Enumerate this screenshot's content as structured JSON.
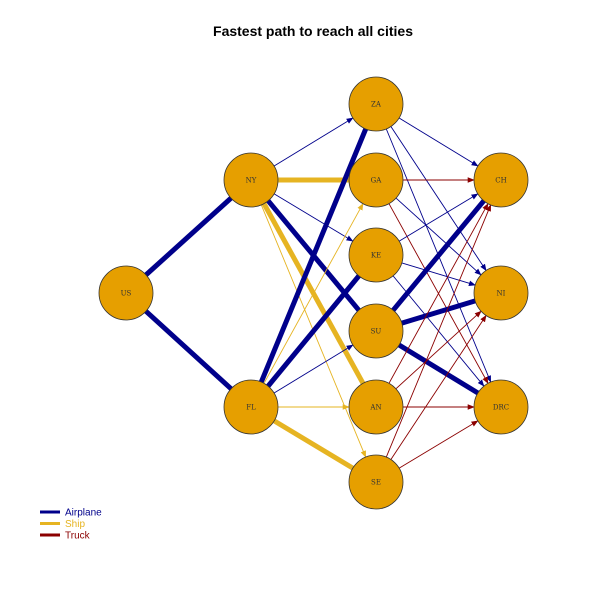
{
  "title": "Fastest path to reach all cities",
  "colors": {
    "Airplane": "#00008b",
    "Ship": "#e6b422",
    "Truck": "#8b0000",
    "node_fill": "#e69f00",
    "node_stroke": "#333333"
  },
  "legend": [
    {
      "label": "Airplane",
      "mode": "Airplane"
    },
    {
      "label": "Ship",
      "mode": "Ship"
    },
    {
      "label": "Truck",
      "mode": "Truck"
    }
  ],
  "nodes": [
    "US",
    "NY",
    "FL",
    "ZA",
    "GA",
    "KE",
    "SU",
    "AN",
    "SE",
    "CH",
    "NI",
    "DRC"
  ],
  "edges": [
    {
      "from": "US",
      "to": "NY",
      "mode": "Airplane",
      "fastest": true
    },
    {
      "from": "US",
      "to": "FL",
      "mode": "Airplane",
      "fastest": true
    },
    {
      "from": "NY",
      "to": "ZA",
      "mode": "Airplane",
      "fastest": false
    },
    {
      "from": "NY",
      "to": "GA",
      "mode": "Ship",
      "fastest": true
    },
    {
      "from": "NY",
      "to": "KE",
      "mode": "Airplane",
      "fastest": false
    },
    {
      "from": "NY",
      "to": "SU",
      "mode": "Airplane",
      "fastest": true
    },
    {
      "from": "NY",
      "to": "AN",
      "mode": "Ship",
      "fastest": true
    },
    {
      "from": "NY",
      "to": "SE",
      "mode": "Ship",
      "fastest": false
    },
    {
      "from": "FL",
      "to": "ZA",
      "mode": "Airplane",
      "fastest": true
    },
    {
      "from": "FL",
      "to": "GA",
      "mode": "Ship",
      "fastest": false
    },
    {
      "from": "FL",
      "to": "KE",
      "mode": "Airplane",
      "fastest": true
    },
    {
      "from": "FL",
      "to": "SU",
      "mode": "Airplane",
      "fastest": false
    },
    {
      "from": "FL",
      "to": "AN",
      "mode": "Ship",
      "fastest": false
    },
    {
      "from": "FL",
      "to": "SE",
      "mode": "Ship",
      "fastest": true
    },
    {
      "from": "ZA",
      "to": "CH",
      "mode": "Airplane",
      "fastest": false
    },
    {
      "from": "ZA",
      "to": "NI",
      "mode": "Airplane",
      "fastest": false
    },
    {
      "from": "ZA",
      "to": "DRC",
      "mode": "Airplane",
      "fastest": false
    },
    {
      "from": "GA",
      "to": "CH",
      "mode": "Truck",
      "fastest": false
    },
    {
      "from": "GA",
      "to": "NI",
      "mode": "Airplane",
      "fastest": false
    },
    {
      "from": "GA",
      "to": "DRC",
      "mode": "Truck",
      "fastest": false
    },
    {
      "from": "KE",
      "to": "CH",
      "mode": "Airplane",
      "fastest": false
    },
    {
      "from": "KE",
      "to": "NI",
      "mode": "Airplane",
      "fastest": false
    },
    {
      "from": "KE",
      "to": "DRC",
      "mode": "Airplane",
      "fastest": false
    },
    {
      "from": "SU",
      "to": "CH",
      "mode": "Airplane",
      "fastest": true
    },
    {
      "from": "SU",
      "to": "NI",
      "mode": "Airplane",
      "fastest": true
    },
    {
      "from": "SU",
      "to": "DRC",
      "mode": "Airplane",
      "fastest": true
    },
    {
      "from": "AN",
      "to": "CH",
      "mode": "Truck",
      "fastest": false
    },
    {
      "from": "AN",
      "to": "NI",
      "mode": "Truck",
      "fastest": false
    },
    {
      "from": "AN",
      "to": "DRC",
      "mode": "Truck",
      "fastest": false
    },
    {
      "from": "SE",
      "to": "CH",
      "mode": "Truck",
      "fastest": false
    },
    {
      "from": "SE",
      "to": "NI",
      "mode": "Truck",
      "fastest": false
    },
    {
      "from": "SE",
      "to": "DRC",
      "mode": "Truck",
      "fastest": false
    }
  ]
}
